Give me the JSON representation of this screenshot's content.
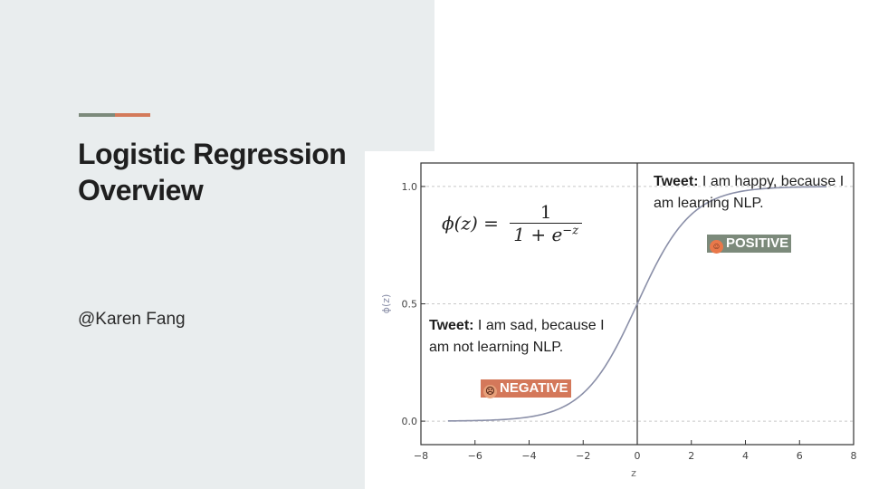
{
  "slide": {
    "title_line1": "Logistic Regression",
    "title_line2": "Overview",
    "author": "@Karen Fang"
  },
  "colors": {
    "panel": "#e9edee",
    "accent_green": "#7c8a7b",
    "accent_orange": "#d47a5a",
    "curve": "#8a8fa8"
  },
  "annotations": {
    "positive": {
      "tweet_label": "Tweet:",
      "tweet_text_line1": " I am happy, because I",
      "tweet_text_line2": "am learning NLP.",
      "badge": "POSITIVE",
      "icon": "grinning-face-icon"
    },
    "negative": {
      "tweet_label": "Tweet:",
      "tweet_text_line1": " I am sad, because I",
      "tweet_text_line2": "am not learning NLP.",
      "badge": "NEGATIVE",
      "icon": "frowning-face-icon"
    }
  },
  "formula": {
    "lhs": "ϕ(z) =",
    "numerator": "1",
    "denominator": "1 + e",
    "exponent": "−z"
  },
  "chart_data": {
    "type": "line",
    "xlabel": "z",
    "ylabel": "ϕ(z)",
    "xlim": [
      -8,
      8
    ],
    "ylim": [
      -0.1,
      1.1
    ],
    "x_ticks": [
      -8,
      -6,
      -4,
      -2,
      0,
      2,
      4,
      6,
      8
    ],
    "x_tick_labels": [
      "−8",
      "−6",
      "−4",
      "−2",
      "0",
      "2",
      "4",
      "6",
      "8"
    ],
    "y_ticks": [
      0.0,
      0.5,
      1.0
    ],
    "y_tick_labels": [
      "0.0",
      "0.5",
      "1.0"
    ],
    "grid": "horizontal dashed at y ticks",
    "vertical_line_at": 0,
    "series": [
      {
        "function": "1/(1+exp(-z))",
        "x_range": [
          -7,
          7
        ]
      }
    ]
  }
}
